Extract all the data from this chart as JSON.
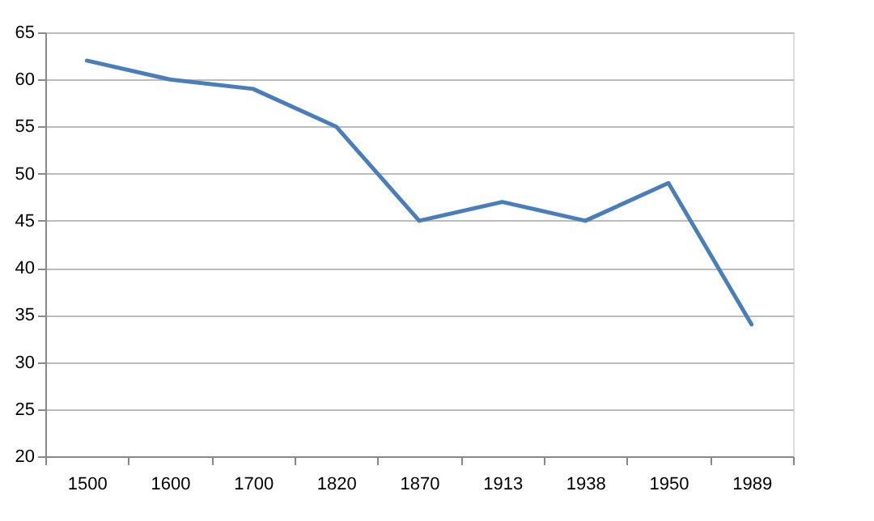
{
  "chart_data": {
    "type": "line",
    "categories": [
      "1500",
      "1600",
      "1700",
      "1820",
      "1870",
      "1913",
      "1938",
      "1950",
      "1989"
    ],
    "series": [
      {
        "color": "#4a7ebb",
        "values": [
          62,
          60,
          59,
          55,
          45,
          47,
          45,
          49,
          34
        ]
      }
    ],
    "ylim": [
      20,
      65
    ],
    "yticks": [
      20,
      25,
      30,
      35,
      40,
      45,
      50,
      55,
      60,
      65
    ],
    "grid": "y",
    "marker": "none",
    "line_style": "solid"
  }
}
